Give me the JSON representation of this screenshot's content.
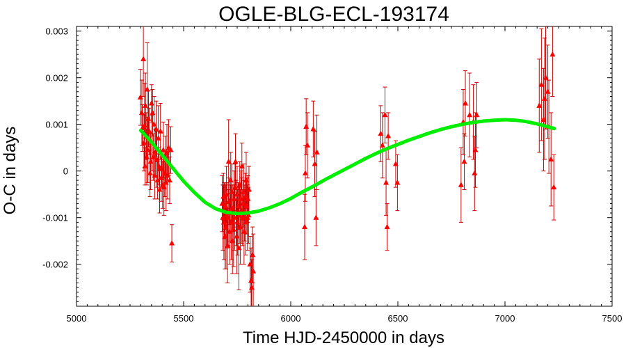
{
  "chart_data": {
    "type": "scatter",
    "title": "OGLE-BLG-ECL-193174",
    "xlabel": "Time HJD-2450000 in days",
    "ylabel": "O-C in days",
    "xlim": [
      5000,
      7500
    ],
    "ylim": [
      -0.0029,
      0.0031
    ],
    "xticks": [
      5000,
      5500,
      6000,
      6500,
      7000,
      7500
    ],
    "yticks": [
      -0.002,
      -0.001,
      0,
      0.001,
      0.002,
      0.003
    ],
    "ytick_labels": [
      "-0.002",
      "-0.001",
      "0",
      "0.001",
      "0.002",
      "0.003"
    ],
    "grid": false,
    "colors": {
      "points": "#ff0000",
      "errorbars": "#cc0000",
      "fit": "#00ee00"
    },
    "series": [
      {
        "kind": "points_with_errorbars",
        "points": [
          [
            5298,
            0.00158,
            0.0006
          ],
          [
            5305,
            0.00125,
            0.0007
          ],
          [
            5308,
            0.00092,
            0.0005
          ],
          [
            5312,
            0.0024,
            0.0008
          ],
          [
            5315,
            0.0006,
            0.0006
          ],
          [
            5318,
            0.00098,
            0.0009
          ],
          [
            5320,
            0.0001,
            0.0004
          ],
          [
            5322,
            0.0014,
            0.0007
          ],
          [
            5325,
            0.00075,
            0.0005
          ],
          [
            5328,
            0.0003,
            0.0006
          ],
          [
            5330,
            0.00175,
            0.001
          ],
          [
            5333,
            0.00045,
            0.0007
          ],
          [
            5336,
            0.00112,
            0.0006
          ],
          [
            5340,
            0.00085,
            0.0005
          ],
          [
            5343,
            -5e-05,
            0.0005
          ],
          [
            5346,
            0.0002,
            0.0006
          ],
          [
            5350,
            0.00145,
            0.0004
          ],
          [
            5352,
            0.0006,
            0.0006
          ],
          [
            5355,
            0.00125,
            0.0005
          ],
          [
            5358,
            0.0003,
            0.0005
          ],
          [
            5362,
            0.001,
            0.0006
          ],
          [
            5365,
            -0.0001,
            0.0005
          ],
          [
            5368,
            0.0004,
            0.0005
          ],
          [
            5372,
            0.0009,
            0.0006
          ],
          [
            5375,
            0.00025,
            0.0006
          ],
          [
            5378,
            -0.0002,
            0.0004
          ],
          [
            5382,
            0.0007,
            0.0007
          ],
          [
            5385,
            0.0001,
            0.0004
          ],
          [
            5388,
            -0.0004,
            0.0005
          ],
          [
            5392,
            0.00085,
            0.0006
          ],
          [
            5395,
            -0.00015,
            0.0005
          ],
          [
            5398,
            5e-05,
            0.0004
          ],
          [
            5402,
            -0.0003,
            0.0005
          ],
          [
            5405,
            0.00045,
            0.0006
          ],
          [
            5408,
            -0.00035,
            0.0006
          ],
          [
            5412,
            -5e-05,
            0.0005
          ],
          [
            5415,
            0.00025,
            0.0005
          ],
          [
            5418,
            -0.00025,
            0.0006
          ],
          [
            5422,
            0.0004,
            0.0006
          ],
          [
            5425,
            -0.0001,
            0.0005
          ],
          [
            5430,
            0.0005,
            0.0006
          ],
          [
            5435,
            -0.0002,
            0.0005
          ],
          [
            5440,
            0.00045,
            0.0005
          ],
          [
            5445,
            -0.00155,
            0.0004
          ],
          [
            5680,
            -0.0007,
            0.0006
          ],
          [
            5683,
            -0.001,
            0.0007
          ],
          [
            5686,
            -0.00055,
            0.0005
          ],
          [
            5688,
            -0.0011,
            0.0008
          ],
          [
            5690,
            -0.00085,
            0.0006
          ],
          [
            5693,
            -0.0014,
            0.0007
          ],
          [
            5695,
            -0.00075,
            0.0005
          ],
          [
            5698,
            -0.0012,
            0.0009
          ],
          [
            5700,
            -0.0005,
            0.0006
          ],
          [
            5702,
            -0.00095,
            0.0007
          ],
          [
            5705,
            -0.0016,
            0.0008
          ],
          [
            5708,
            -0.001,
            0.0006
          ],
          [
            5710,
            0.0002,
            0.0009
          ],
          [
            5712,
            -0.00065,
            0.0005
          ],
          [
            5715,
            -0.0013,
            0.0007
          ],
          [
            5718,
            -0.0009,
            0.0006
          ],
          [
            5720,
            -0.0002,
            0.0006
          ],
          [
            5723,
            -0.0011,
            0.0008
          ],
          [
            5725,
            -0.00045,
            0.0006
          ],
          [
            5728,
            -0.0015,
            0.0007
          ],
          [
            5730,
            -0.0008,
            0.0005
          ],
          [
            5733,
            -0.00125,
            0.0008
          ],
          [
            5735,
            -0.0006,
            0.0006
          ],
          [
            5738,
            -0.001,
            0.0007
          ],
          [
            5740,
            -0.00035,
            0.0005
          ],
          [
            5742,
            0.0002,
            0.0006
          ],
          [
            5745,
            -0.0009,
            0.0007
          ],
          [
            5748,
            -0.0014,
            0.0008
          ],
          [
            5750,
            -0.0005,
            0.0006
          ],
          [
            5752,
            -0.0011,
            0.0007
          ],
          [
            5755,
            -0.00075,
            0.0005
          ],
          [
            5758,
            -0.00165,
            0.0009
          ],
          [
            5760,
            -0.00095,
            0.0006
          ],
          [
            5762,
            -0.0003,
            0.0005
          ],
          [
            5765,
            -0.0012,
            0.0008
          ],
          [
            5768,
            -0.0006,
            0.0006
          ],
          [
            5770,
            -0.00085,
            0.0007
          ],
          [
            5772,
            0.0001,
            0.0005
          ],
          [
            5775,
            -0.001,
            0.0006
          ],
          [
            5778,
            -0.0007,
            0.0005
          ],
          [
            5780,
            -0.00045,
            0.0006
          ],
          [
            5782,
            -0.0013,
            0.0007
          ],
          [
            5785,
            -0.0009,
            0.0006
          ],
          [
            5788,
            -0.00055,
            0.0005
          ],
          [
            5790,
            -0.0011,
            0.0007
          ],
          [
            5792,
            -0.0002,
            0.0006
          ],
          [
            5795,
            -0.00075,
            0.0006
          ],
          [
            5798,
            -0.001,
            0.0007
          ],
          [
            5800,
            -0.0006,
            0.0005
          ],
          [
            5803,
            -0.00095,
            0.0006
          ],
          [
            5805,
            -0.0004,
            0.0005
          ],
          [
            5810,
            -0.002,
            0.0006
          ],
          [
            5815,
            -0.00235,
            0.0007
          ],
          [
            5818,
            -0.0025,
            0.0006
          ],
          [
            5822,
            -0.0018,
            0.0006
          ],
          [
            5825,
            -0.00215,
            0.0008
          ],
          [
            6065,
            -0.0012,
            0.0007
          ],
          [
            6068,
            -5e-05,
            0.0006
          ],
          [
            6072,
            0.00095,
            0.0006
          ],
          [
            6078,
            0.00055,
            0.0007
          ],
          [
            6105,
            0.0009,
            0.0006
          ],
          [
            6112,
            0.00015,
            0.0007
          ],
          [
            6118,
            -0.001,
            0.0006
          ],
          [
            6122,
            0.0004,
            0.0008
          ],
          [
            6420,
            0.0008,
            0.0006
          ],
          [
            6428,
            0.00055,
            0.0007
          ],
          [
            6440,
            0.0012,
            0.0006
          ],
          [
            6445,
            -0.00025,
            0.0007
          ],
          [
            6450,
            -0.0012,
            0.0005
          ],
          [
            6455,
            0.00075,
            0.0005
          ],
          [
            6490,
            0.00015,
            0.0005
          ],
          [
            6498,
            -0.00025,
            0.0006
          ],
          [
            6795,
            -0.0003,
            0.0008
          ],
          [
            6805,
            0.00105,
            0.0007
          ],
          [
            6810,
            0.0002,
            0.0006
          ],
          [
            6815,
            0.00145,
            0.0007
          ],
          [
            6835,
            0.0012,
            0.0009
          ],
          [
            6852,
            0.00105,
            0.0008
          ],
          [
            6858,
            -5e-05,
            0.0008
          ],
          [
            6862,
            0.00045,
            0.0008
          ],
          [
            6868,
            0.0012,
            0.0007
          ],
          [
            7160,
            0.0014,
            0.001
          ],
          [
            7170,
            0.00185,
            0.0012
          ],
          [
            7180,
            0.0011,
            0.0011
          ],
          [
            7185,
            0.00155,
            0.0013
          ],
          [
            7190,
            0.002,
            0.0011
          ],
          [
            7200,
            0.0017,
            0.001
          ],
          [
            7205,
            0.00095,
            0.001
          ],
          [
            7215,
            0.00025,
            0.001
          ],
          [
            7222,
            0.0025,
            0.0009
          ],
          [
            7228,
            -0.00035,
            0.0007
          ]
        ]
      },
      {
        "kind": "fit_curve",
        "x": [
          5300,
          5350,
          5400,
          5450,
          5500,
          5550,
          5600,
          5650,
          5700,
          5750,
          5800,
          5850,
          5900,
          5950,
          6000,
          6050,
          6100,
          6150,
          6200,
          6250,
          6300,
          6350,
          6400,
          6450,
          6500,
          6550,
          6600,
          6650,
          6700,
          6750,
          6800,
          6850,
          6900,
          6950,
          7000,
          7050,
          7100,
          7150,
          7200,
          7230
        ],
        "y": [
          0.00087,
          0.00062,
          0.00034,
          6e-05,
          -0.00022,
          -0.00046,
          -0.00067,
          -0.00081,
          -0.00089,
          -0.00091,
          -0.0009,
          -0.00086,
          -0.00079,
          -0.0007,
          -0.00059,
          -0.00046,
          -0.00034,
          -0.00021,
          -9e-05,
          3e-05,
          0.00015,
          0.00027,
          0.00038,
          0.00048,
          0.00057,
          0.00066,
          0.00074,
          0.00082,
          0.00089,
          0.00095,
          0.001,
          0.00104,
          0.00107,
          0.00109,
          0.0011,
          0.00109,
          0.00106,
          0.00101,
          0.00095,
          0.00091
        ]
      }
    ]
  }
}
